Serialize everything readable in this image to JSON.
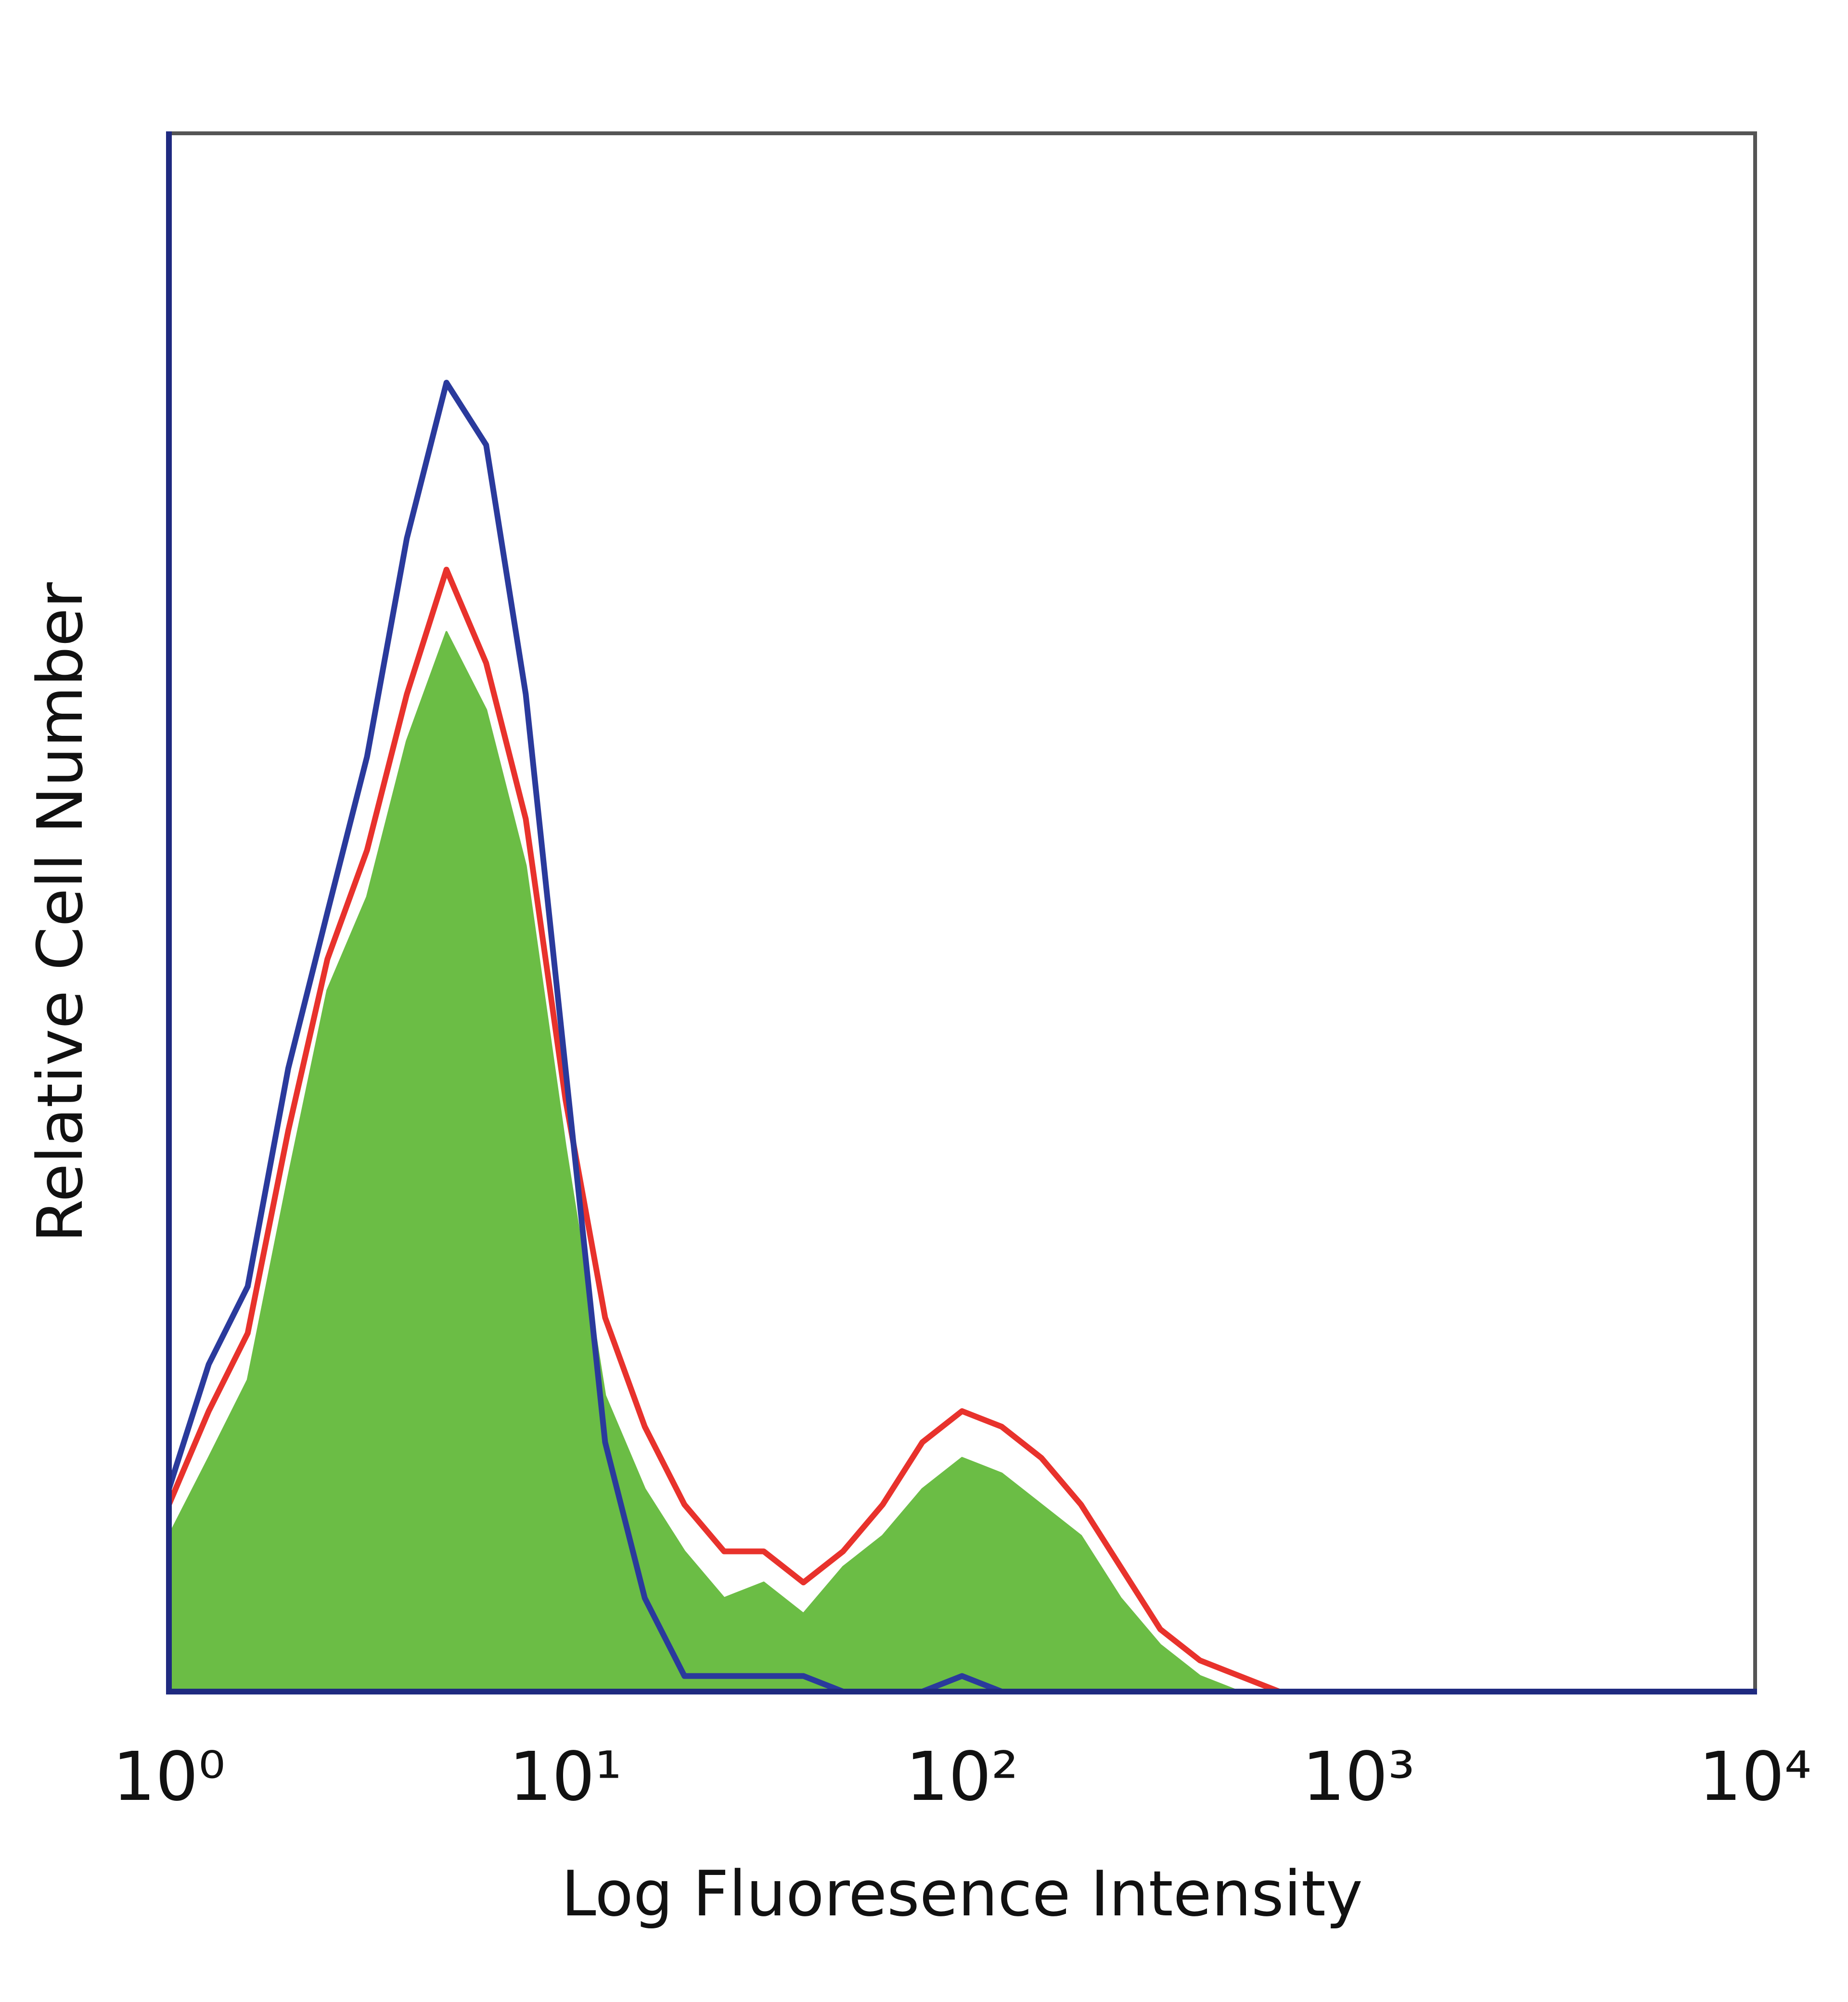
{
  "chart_data": {
    "type": "histogram-overlay",
    "x_label": "Log Fluoresence Intensity",
    "y_label": "Relative Cell Number",
    "xscale": "log",
    "xlim": [
      1,
      10000
    ],
    "xticks": [
      {
        "value": 1,
        "label": "10⁰"
      },
      {
        "value": 10,
        "label": "10¹"
      },
      {
        "value": 100,
        "label": "10²"
      },
      {
        "value": 1000,
        "label": "10³"
      },
      {
        "value": 10000,
        "label": "10⁴"
      }
    ],
    "ylim": [
      0,
      100
    ],
    "x": [
      1,
      1.26,
      1.58,
      2,
      2.51,
      3.16,
      3.98,
      5.01,
      6.31,
      7.94,
      10,
      12.59,
      15.85,
      19.95,
      25.12,
      31.62,
      39.81,
      50.12,
      63.1,
      79.43,
      100,
      125.9,
      158.5,
      199.5,
      251.2,
      316.2,
      398.1,
      501.2,
      631
    ],
    "series": [
      {
        "color": "#6bbd45",
        "fill": true,
        "values": [
          10,
          15,
          20,
          33,
          45,
          51,
          61,
          68,
          63,
          53,
          35,
          19,
          13,
          9,
          6,
          7,
          5,
          8,
          10,
          13,
          15,
          14,
          12,
          10,
          6,
          3,
          1,
          0,
          0
        ]
      },
      {
        "color": "#e8322c",
        "fill": false,
        "values": [
          12,
          18,
          23,
          36,
          47,
          54,
          64,
          72,
          66,
          56,
          38,
          24,
          17,
          12,
          9,
          9,
          7,
          9,
          12,
          16,
          18,
          17,
          15,
          12,
          8,
          4,
          2,
          1,
          0
        ]
      },
      {
        "color": "#2a3a9c",
        "fill": false,
        "values": [
          13,
          21,
          26,
          40,
          50,
          60,
          74,
          84,
          80,
          64,
          40,
          16,
          6,
          1,
          1,
          1,
          1,
          0,
          0,
          0,
          1,
          0,
          0,
          0,
          0,
          0,
          0,
          0,
          0
        ]
      }
    ]
  }
}
